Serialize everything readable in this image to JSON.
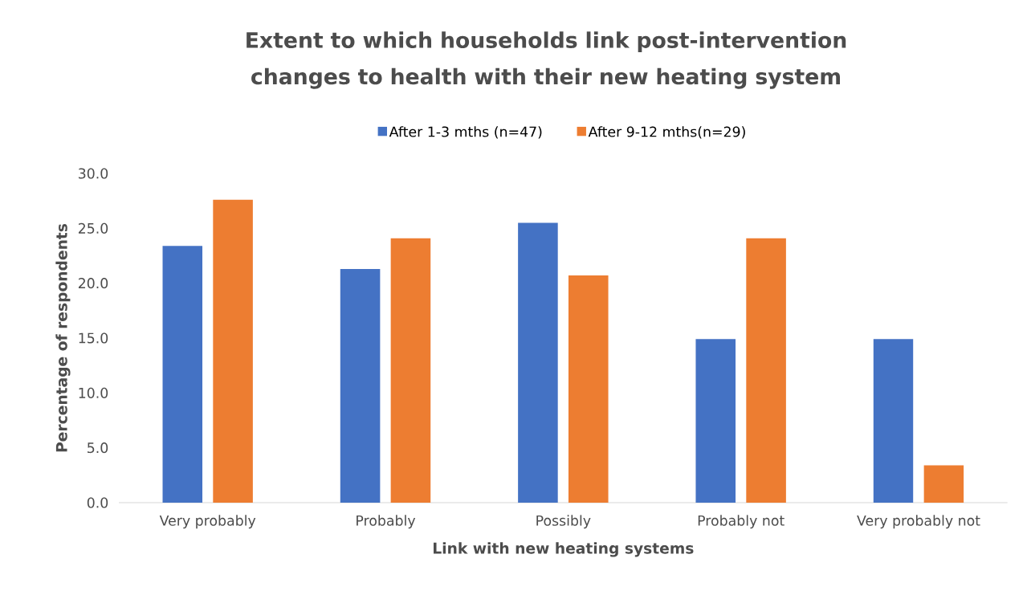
{
  "chart_data": {
    "type": "bar",
    "title": "Extent to which households link post-intervention changes to health with their new heating system",
    "xlabel": "Link with new heating systems",
    "ylabel": "Percentage of respondents",
    "categories": [
      "Very probably",
      "Probably",
      "Possibly",
      "Probably not",
      "Very probably not"
    ],
    "series": [
      {
        "name": "After 1-3 mths (n=47)",
        "color": "#4472c4",
        "values": [
          23.4,
          21.3,
          25.5,
          14.9,
          14.9
        ]
      },
      {
        "name": "After 9-12 mths(n=29)",
        "color": "#ed7d31",
        "values": [
          27.6,
          24.1,
          20.7,
          24.1,
          3.4
        ]
      }
    ],
    "ylim": [
      0,
      30
    ],
    "yticks": [
      {
        "value": 0,
        "label": "0.0"
      },
      {
        "value": 5,
        "label": "5.0"
      },
      {
        "value": 10,
        "label": "10.0"
      },
      {
        "value": 15,
        "label": "15.0"
      },
      {
        "value": 20,
        "label": "20.0"
      },
      {
        "value": 25,
        "label": "25.0"
      },
      {
        "value": 30,
        "label": "30.0"
      }
    ],
    "legend": "top",
    "grid": false
  }
}
